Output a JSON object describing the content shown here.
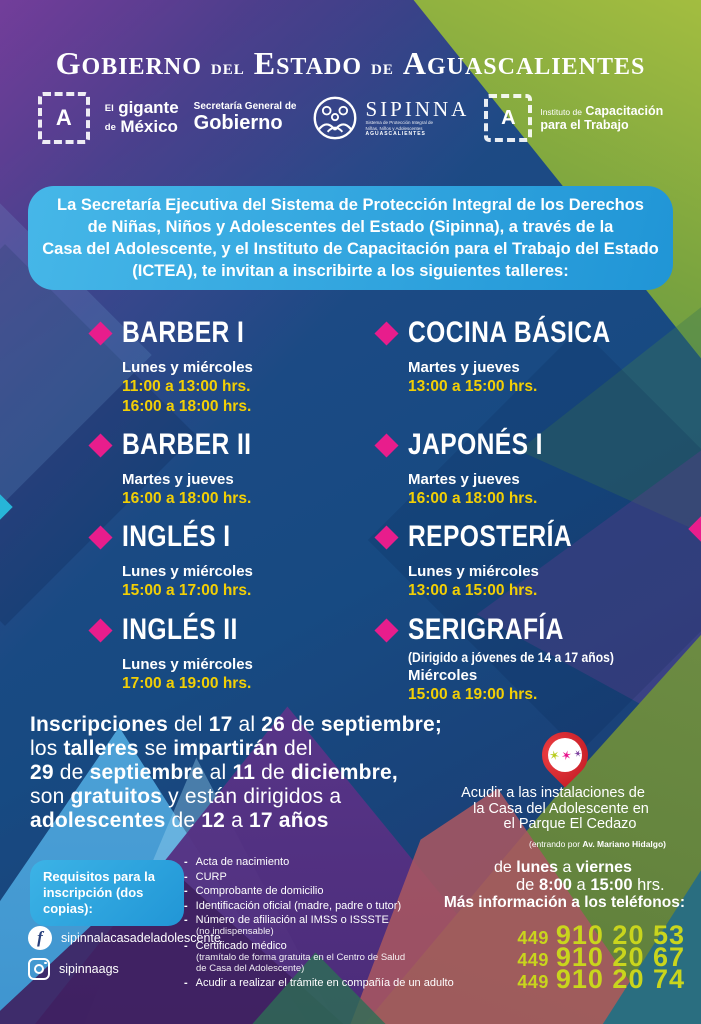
{
  "header": {
    "title_full": "Gobierno del Estado de Aguascalientes",
    "title_parts": [
      "Gobierno",
      "del",
      "Estado",
      "de",
      "Aguascalientes"
    ]
  },
  "logos": {
    "emblem_letter": "A",
    "gigante": {
      "small1": "El",
      "bold1": "gigante",
      "small2": "de",
      "bold2": "México"
    },
    "secretaria": {
      "small": "Secretaría General de",
      "bold": "Gobierno"
    },
    "sipinna": {
      "name": "SIPINNA",
      "subtitle_lines": [
        "Sistema de Protección Integral de",
        "Niñas, Niños y Adolescentes"
      ],
      "state": "AGUASCALIENTES"
    },
    "ictea": {
      "small": "Instituto de",
      "bold1": "Capacitación",
      "bold2": "para el Trabajo"
    }
  },
  "callout": {
    "lines": [
      "La Secretaría Ejecutiva del Sistema de Protección Integral de los Derechos",
      "de Niñas, Niños y Adolescentes del Estado (Sipinna), a través de la",
      "Casa del Adolescente, y el Instituto de Capacitación para el Trabajo del Estado",
      "(ICTEA), te invitan a inscribirte a los siguientes talleres:"
    ]
  },
  "workshops": {
    "left": [
      {
        "title": "BARBER I",
        "days": "Lunes y miércoles",
        "times": [
          "11:00 a 13:00 hrs.",
          "16:00 a 18:00 hrs."
        ]
      },
      {
        "title": "BARBER II",
        "days": "Martes y jueves",
        "times": [
          "16:00 a 18:00 hrs."
        ]
      },
      {
        "title": "INGLÉS I",
        "days": "Lunes y miércoles",
        "times": [
          "15:00 a 17:00 hrs."
        ]
      },
      {
        "title": "INGLÉS II",
        "days": "Lunes y miércoles",
        "times": [
          "17:00 a 19:00 hrs."
        ]
      }
    ],
    "right": [
      {
        "title": "COCINA BÁSICA",
        "days": "Martes y jueves",
        "times": [
          "13:00 a 15:00 hrs."
        ]
      },
      {
        "title": "JAPONÉS I",
        "days": "Martes y jueves",
        "times": [
          "16:00 a 18:00 hrs."
        ]
      },
      {
        "title": "REPOSTERÍA",
        "days": "Lunes y miércoles",
        "times": [
          "13:00 a 15:00 hrs."
        ]
      },
      {
        "title": "SERIGRAFÍA",
        "note": "(Dirigido a jóvenes de 14 a 17 años)",
        "days": "Miércoles",
        "times": [
          "15:00 a 19:00 hrs."
        ]
      }
    ]
  },
  "inscriptions": {
    "lines": [
      [
        {
          "t": "Inscripciones",
          "b": 1
        },
        {
          "t": " del ",
          "b": 0
        },
        {
          "t": "17",
          "b": 1
        },
        {
          "t": " al ",
          "b": 0
        },
        {
          "t": "26",
          "b": 1
        },
        {
          "t": " de ",
          "b": 0
        },
        {
          "t": "septiembre;",
          "b": 1
        }
      ],
      [
        {
          "t": "los ",
          "b": 0
        },
        {
          "t": "talleres",
          "b": 1
        },
        {
          "t": " se ",
          "b": 0
        },
        {
          "t": "impartirán",
          "b": 1
        },
        {
          "t": " del",
          "b": 0
        }
      ],
      [
        {
          "t": "29",
          "b": 1
        },
        {
          "t": " de ",
          "b": 0
        },
        {
          "t": "septiembre",
          "b": 1
        },
        {
          "t": " al ",
          "b": 0
        },
        {
          "t": "11",
          "b": 1
        },
        {
          "t": " de ",
          "b": 0
        },
        {
          "t": "diciembre,",
          "b": 1
        }
      ],
      [
        {
          "t": "son ",
          "b": 0
        },
        {
          "t": "gratuitos",
          "b": 1
        },
        {
          "t": " y están dirigidos a",
          "b": 0
        }
      ],
      [
        {
          "t": "adolescentes",
          "b": 1
        },
        {
          "t": " de ",
          "b": 0
        },
        {
          "t": "12",
          "b": 1
        },
        {
          "t": " a ",
          "b": 0
        },
        {
          "t": "17 años",
          "b": 1
        }
      ]
    ]
  },
  "location": {
    "lines": [
      "Acudir a las instalaciones de",
      "la Casa del Adolescente en",
      "el Parque El Cedazo"
    ],
    "entry": [
      {
        "t": "(entrando por ",
        "b": 0
      },
      {
        "t": "Av. Mariano Hidalgo)",
        "b": 1
      }
    ],
    "schedule1": [
      {
        "t": "de ",
        "b": 0
      },
      {
        "t": "lunes",
        "b": 1
      },
      {
        "t": " a ",
        "b": 0
      },
      {
        "t": "viernes",
        "b": 1
      }
    ],
    "schedule2": [
      {
        "t": "de ",
        "b": 0
      },
      {
        "t": "8:00",
        "b": 1
      },
      {
        "t": " a ",
        "b": 0
      },
      {
        "t": "15:00",
        "b": 1
      },
      {
        "t": " hrs.",
        "b": 0
      }
    ]
  },
  "requisitos": {
    "badge": "Requisitos para la inscripción (dos copias):",
    "items": [
      {
        "text": "Acta de nacimiento"
      },
      {
        "text": "CURP"
      },
      {
        "text": "Comprobante de domicilio"
      },
      {
        "text": "Identificación oficial (madre, padre o tutor)"
      },
      {
        "text": "Número de afiliación al IMSS o ISSSTE",
        "note": "(no indispensable)"
      },
      {
        "text": "Certificado médico",
        "note": "(tramítalo de forma gratuita en el Centro de Salud de Casa del Adolescente)"
      },
      {
        "text": "Acudir a realizar el trámite en compañía de un adulto"
      }
    ]
  },
  "social": {
    "facebook": "sipinnalacasadeladolescente",
    "instagram": "sipinnaags"
  },
  "phones": {
    "label": "Más información a los teléfonos:",
    "numbers": [
      {
        "area": "449",
        "number": "910 20 53"
      },
      {
        "area": "449",
        "number": "910 20 67"
      },
      {
        "area": "449",
        "number": "910 20 74"
      }
    ]
  },
  "colors": {
    "magenta_accent": "#e81d8c",
    "gold_time": "#f2cf05",
    "lime_phone": "#c9d51d",
    "callout_blue": "#2fa9e1",
    "base_blue": "#174a82",
    "purple": "#6a4596",
    "olive": "#6e8d43"
  }
}
